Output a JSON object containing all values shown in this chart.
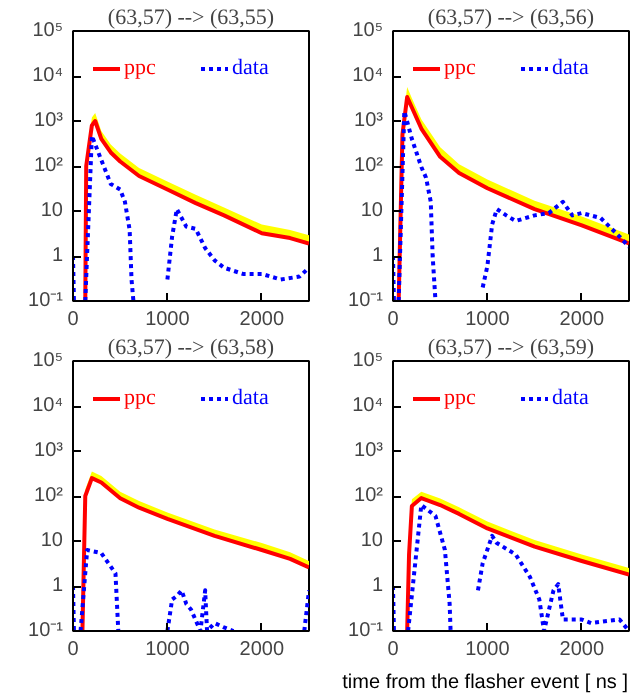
{
  "chart_data": [
    {
      "type": "line",
      "title": "(63,57) --> (63,55)",
      "log": "y",
      "xlim": [
        0,
        2500
      ],
      "ylim": [
        0.1,
        100000
      ],
      "xticks": [
        0,
        1000,
        2000
      ],
      "yticks": [
        {
          "value": 0.1,
          "label": "10⁻¹"
        },
        1,
        10,
        {
          "value": 100,
          "label": "10²"
        },
        {
          "value": 1000,
          "label": "10³"
        },
        {
          "value": 10000,
          "label": "10⁴"
        },
        {
          "value": 100000,
          "label": "10⁵"
        }
      ],
      "legend": "top",
      "grid": false,
      "series": [
        {
          "name": "ppc",
          "color": "#ff0000",
          "line_style": "solid",
          "x": [
            130,
            140,
            200,
            235,
            300,
            400,
            500,
            700,
            1000,
            1300,
            1600,
            2000,
            2300,
            2500
          ],
          "values": [
            0.1,
            100,
            800,
            1000,
            400,
            200,
            126,
            60,
            30,
            15,
            8,
            3.2,
            2.5,
            1.9
          ],
          "upper": [
            0.15,
            150,
            1200,
            1500,
            600,
            300,
            190,
            90,
            45,
            23,
            12,
            5,
            3.8,
            2.9
          ],
          "lower": [
            0.1,
            100,
            800,
            1000,
            400,
            200,
            126,
            60,
            30,
            15,
            8,
            3.2,
            2.5,
            1.9
          ]
        },
        {
          "name": "data",
          "color": "#0000ff",
          "line_style": "dotted",
          "x": [
            0,
            10,
            70,
            130,
            200,
            300,
            400,
            500,
            550,
            600,
            620,
            640,
            800,
            1000,
            1050,
            1100,
            1200,
            1300,
            1400,
            1500,
            1600,
            1800,
            2000,
            2200,
            2400,
            2500
          ],
          "values": [
            1,
            0.1,
            null,
            0.1,
            470,
            135,
            40,
            30,
            16,
            3.8,
            0.3,
            0.1,
            null,
            0.3,
            2.7,
            11,
            4.5,
            4,
            1.5,
            0.8,
            0.55,
            0.4,
            0.4,
            0.3,
            0.35,
            0.55
          ]
        }
      ]
    },
    {
      "type": "line",
      "title": "(63,57) --> (63,56)",
      "log": "y",
      "xlim": [
        0,
        2500
      ],
      "ylim": [
        0.1,
        100000
      ],
      "xticks": [
        0,
        1000,
        2000
      ],
      "yticks": [
        {
          "value": 0.1,
          "label": "10⁻¹"
        },
        1,
        10,
        {
          "value": 100,
          "label": "10²"
        },
        {
          "value": 1000,
          "label": "10³"
        },
        {
          "value": 10000,
          "label": "10⁴"
        },
        {
          "value": 100000,
          "label": "10⁵"
        }
      ],
      "legend": "top",
      "grid": false,
      "series": [
        {
          "name": "ppc",
          "color": "#ff0000",
          "line_style": "solid",
          "x": [
            60,
            100,
            150,
            200,
            300,
            500,
            700,
            1000,
            1500,
            2000,
            2500
          ],
          "values": [
            0.1,
            500,
            3400,
            2000,
            680,
            160,
            70,
            32,
            11,
            4.8,
            1.9
          ],
          "upper": [
            0.15,
            800,
            5700,
            3200,
            1100,
            260,
            110,
            50,
            17,
            7.5,
            3
          ],
          "lower": [
            0.1,
            500,
            3400,
            2000,
            680,
            160,
            70,
            32,
            11,
            4.8,
            1.9
          ]
        },
        {
          "name": "data",
          "color": "#0000ff",
          "line_style": "dotted",
          "x": [
            0,
            10,
            30,
            60,
            120,
            200,
            300,
            350,
            400,
            420,
            450,
            500,
            950,
            1000,
            1050,
            1100,
            1200,
            1300,
            1500,
            1650,
            1800,
            1900,
            2000,
            2200,
            2400,
            2500
          ],
          "values": [
            1,
            0.1,
            null,
            0.1,
            1650,
            400,
            95,
            55,
            16,
            1,
            0.1,
            null,
            0.2,
            0.6,
            5,
            11,
            8,
            6,
            8,
            9,
            16,
            8,
            9,
            7,
            2.7,
            1.6
          ]
        }
      ]
    },
    {
      "type": "line",
      "title": "(63,57) --> (63,58)",
      "log": "y",
      "xlim": [
        0,
        2500
      ],
      "ylim": [
        0.1,
        100000
      ],
      "xticks": [
        0,
        1000,
        2000
      ],
      "yticks": [
        {
          "value": 0.1,
          "label": "10⁻¹"
        },
        1,
        10,
        {
          "value": 100,
          "label": "10²"
        },
        {
          "value": 1000,
          "label": "10³"
        },
        {
          "value": 10000,
          "label": "10⁴"
        },
        {
          "value": 100000,
          "label": "10⁵"
        }
      ],
      "legend": "top",
      "grid": false,
      "series": [
        {
          "name": "ppc",
          "color": "#ff0000",
          "line_style": "solid",
          "x": [
            100,
            130,
            200,
            300,
            500,
            700,
            1000,
            1500,
            2000,
            2300,
            2500
          ],
          "values": [
            0.1,
            100,
            250,
            200,
            89,
            55,
            31,
            13,
            6.3,
            4,
            2.6
          ],
          "upper": [
            0.15,
            140,
            350,
            280,
            125,
            77,
            43,
            18,
            9,
            5.6,
            3.6
          ],
          "lower": [
            0.1,
            100,
            250,
            200,
            89,
            55,
            31,
            13,
            6.3,
            4,
            2.6
          ]
        },
        {
          "name": "data",
          "color": "#0000ff",
          "line_style": "dotted",
          "x": [
            0,
            10,
            40,
            80,
            150,
            300,
            450,
            480,
            700,
            1000,
            1050,
            1100,
            1150,
            1200,
            1250,
            1350,
            1400,
            1420,
            1500,
            1600,
            1700,
            2000,
            2450,
            2500
          ],
          "values": [
            1,
            0.1,
            null,
            0.1,
            6.3,
            5.4,
            1.9,
            0.1,
            null,
            0.1,
            0.5,
            0.6,
            0.8,
            0.4,
            0.3,
            0.1,
            0.8,
            0.1,
            0.15,
            0.12,
            0.1,
            null,
            0.1,
            0.8
          ]
        }
      ]
    },
    {
      "type": "line",
      "title": "(63,57) --> (63,59)",
      "xlabel": "time from the flasher event [ ns ]",
      "log": "y",
      "xlim": [
        0,
        2500
      ],
      "ylim": [
        0.1,
        100000
      ],
      "xticks": [
        0,
        1000,
        2000
      ],
      "yticks": [
        {
          "value": 0.1,
          "label": "10⁻¹"
        },
        1,
        10,
        {
          "value": 100,
          "label": "10²"
        },
        {
          "value": 1000,
          "label": "10³"
        },
        {
          "value": 10000,
          "label": "10⁴"
        },
        {
          "value": 100000,
          "label": "10⁵"
        }
      ],
      "legend": "top",
      "grid": false,
      "series": [
        {
          "name": "ppc",
          "color": "#ff0000",
          "line_style": "solid",
          "x": [
            150,
            170,
            200,
            300,
            500,
            700,
            1000,
            1500,
            2000,
            2500
          ],
          "values": [
            0.1,
            5,
            60,
            90,
            63,
            40,
            19,
            7.5,
            3.6,
            1.8
          ],
          "upper": [
            0.15,
            7,
            85,
            125,
            88,
            56,
            27,
            10.5,
            5,
            2.5
          ],
          "lower": [
            0.1,
            5,
            60,
            90,
            63,
            40,
            19,
            7.5,
            3.6,
            1.8
          ]
        },
        {
          "name": "data",
          "color": "#0000ff",
          "line_style": "dotted",
          "x": [
            0,
            10,
            80,
            160,
            300,
            450,
            550,
            600,
            610,
            750,
            900,
            950,
            1050,
            1100,
            1300,
            1450,
            1550,
            1600,
            1700,
            1750,
            1800,
            2000,
            2100,
            2400,
            2500
          ],
          "values": [
            1,
            0.1,
            null,
            0.1,
            63,
            36,
            6.3,
            0.4,
            0.1,
            null,
            0.8,
            3.2,
            13,
            9,
            5,
            1.6,
            0.5,
            0.1,
            0.8,
            1.1,
            0.18,
            0.18,
            0.15,
            0.18,
            0.1
          ]
        }
      ]
    }
  ]
}
